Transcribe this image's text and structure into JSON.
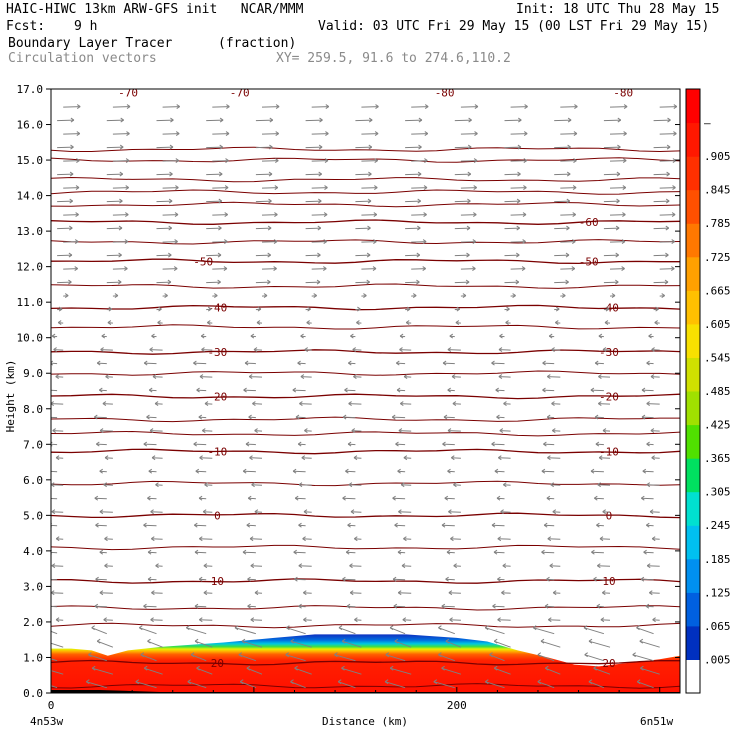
{
  "header": {
    "model": "HAIC-HIWC 13km ARW-GFS init   NCAR/MMM",
    "init": "Init: 18 UTC Thu 28 May 15",
    "fcst_label": "Fcst:",
    "fcst_value": "9 h",
    "valid": "Valid: 03 UTC Fri 29 May 15 (00 LST Fri 29 May 15)",
    "field": "Boundary Layer Tracer",
    "units": "(fraction)",
    "overlay": "Circulation vectors",
    "xy": "XY= 259.5, 91.6 to 274.6,110.2"
  },
  "colors": {
    "contour": "#7a0000",
    "vector": "#808080",
    "tracer_high": "#ff2200"
  },
  "chart_data": {
    "type": "heatmap",
    "xlabel": "Distance (km)",
    "ylabel": "Height (km)",
    "xlim": [
      0,
      310
    ],
    "ylim": [
      0,
      17
    ],
    "x_tick_labels": [
      {
        "x": 0,
        "label": "0"
      },
      {
        "x": 200,
        "label": "200"
      }
    ],
    "x_end_labels": [
      "4n53w",
      "6n51w"
    ],
    "y_ticks": [
      0.0,
      1.0,
      2.0,
      3.0,
      4.0,
      5.0,
      6.0,
      7.0,
      8.0,
      9.0,
      10.0,
      11.0,
      12.0,
      13.0,
      14.0,
      15.0,
      16.0,
      17.0
    ],
    "colorbar": {
      "labels": [
        ".005",
        ".065",
        ".125",
        ".185",
        ".245",
        ".305",
        ".365",
        ".425",
        ".485",
        ".545",
        ".605",
        ".665",
        ".725",
        ".785",
        ".845",
        ".905",
        "—"
      ],
      "colors": [
        "#ffffff",
        "#0030c0",
        "#0060e0",
        "#0090f0",
        "#00c0f0",
        "#00e0d0",
        "#00e060",
        "#50e000",
        "#a0e000",
        "#d0e000",
        "#f8e000",
        "#ffc000",
        "#ffa000",
        "#ff7800",
        "#ff5000",
        "#ff3000",
        "#ff1800",
        "#ff0000"
      ]
    },
    "pbl_top": {
      "x": [
        0,
        10,
        20,
        28,
        38,
        55,
        85,
        110,
        130,
        150,
        175,
        200,
        215,
        230,
        245,
        258,
        270,
        285,
        300,
        310
      ],
      "height_km": [
        1.25,
        1.25,
        1.2,
        1.05,
        1.2,
        1.3,
        1.42,
        1.55,
        1.65,
        1.65,
        1.65,
        1.55,
        1.45,
        1.2,
        1.0,
        0.8,
        0.75,
        0.85,
        0.95,
        1.05
      ]
    },
    "temperature_contours": [
      {
        "label": "20",
        "height_km": 0.85,
        "label_x": [
          82,
          275
        ]
      },
      {
        "label": "10",
        "height_km": 3.15,
        "label_x": [
          82,
          275
        ]
      },
      {
        "label": "0",
        "height_km": 5.0,
        "label_x": [
          82,
          275
        ]
      },
      {
        "label": "-10",
        "height_km": 6.8,
        "label_x": [
          82,
          275
        ]
      },
      {
        "label": "-20",
        "height_km": 8.35,
        "label_x": [
          82,
          275
        ]
      },
      {
        "label": "-30",
        "height_km": 9.6,
        "label_x": [
          82,
          275
        ]
      },
      {
        "label": "-40",
        "height_km": 10.85,
        "label_x": [
          82,
          275
        ]
      },
      {
        "label": "-50",
        "height_km": 12.15,
        "label_x": [
          75,
          265
        ]
      },
      {
        "label": "-60",
        "height_km": 13.25,
        "label_x": [
          265
        ]
      },
      {
        "label": "-70",
        "height_km": 16.9,
        "label_x": [
          38,
          93
        ]
      },
      {
        "label": "-80",
        "height_km": 16.9,
        "label_x": [
          194,
          282
        ]
      }
    ],
    "extra_contour_heights_km": [
      0.2,
      1.9,
      2.4,
      4.1,
      5.9,
      7.3,
      7.7,
      9.0,
      10.3,
      11.45,
      12.7,
      13.75,
      14.1,
      14.45,
      15.0,
      15.3
    ]
  }
}
